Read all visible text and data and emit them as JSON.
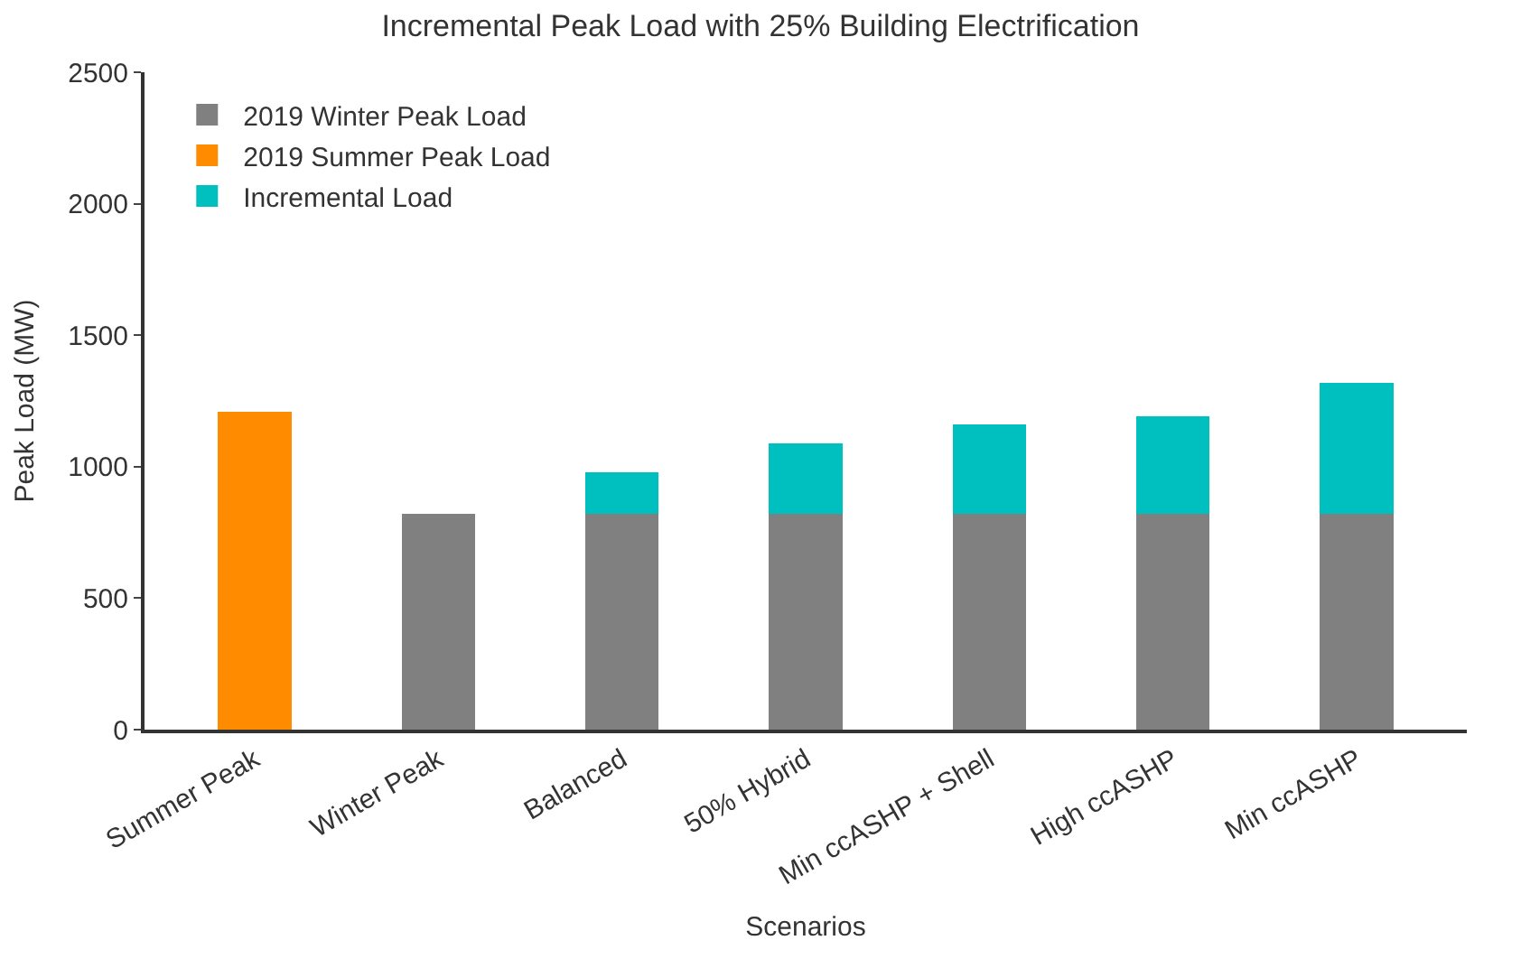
{
  "chart_data": {
    "type": "bar",
    "stacked": true,
    "title": "Incremental Peak Load with 25% Building Electrification",
    "xlabel": "Scenarios",
    "ylabel": "Peak Load (MW)",
    "categories": [
      "Summer Peak",
      "Winter Peak",
      "Balanced",
      "50% Hybrid",
      "Min ccASHP + Shell",
      "High ccASHP",
      "Min ccASHP"
    ],
    "series": [
      {
        "name": "2019 Winter Peak Load",
        "color": "#808080",
        "values": [
          null,
          820,
          820,
          820,
          820,
          820,
          820
        ]
      },
      {
        "name": "2019 Summer Peak Load",
        "color": "#ff8c00",
        "values": [
          1210,
          null,
          null,
          null,
          null,
          null,
          null
        ]
      },
      {
        "name": "Incremental Load",
        "color": "#00bfbf",
        "values": [
          null,
          null,
          160,
          270,
          340,
          370,
          500
        ]
      }
    ],
    "ylim": [
      0,
      2500
    ],
    "yticks": [
      0,
      500,
      1000,
      1500,
      2000,
      2500
    ],
    "legend": "top left"
  }
}
